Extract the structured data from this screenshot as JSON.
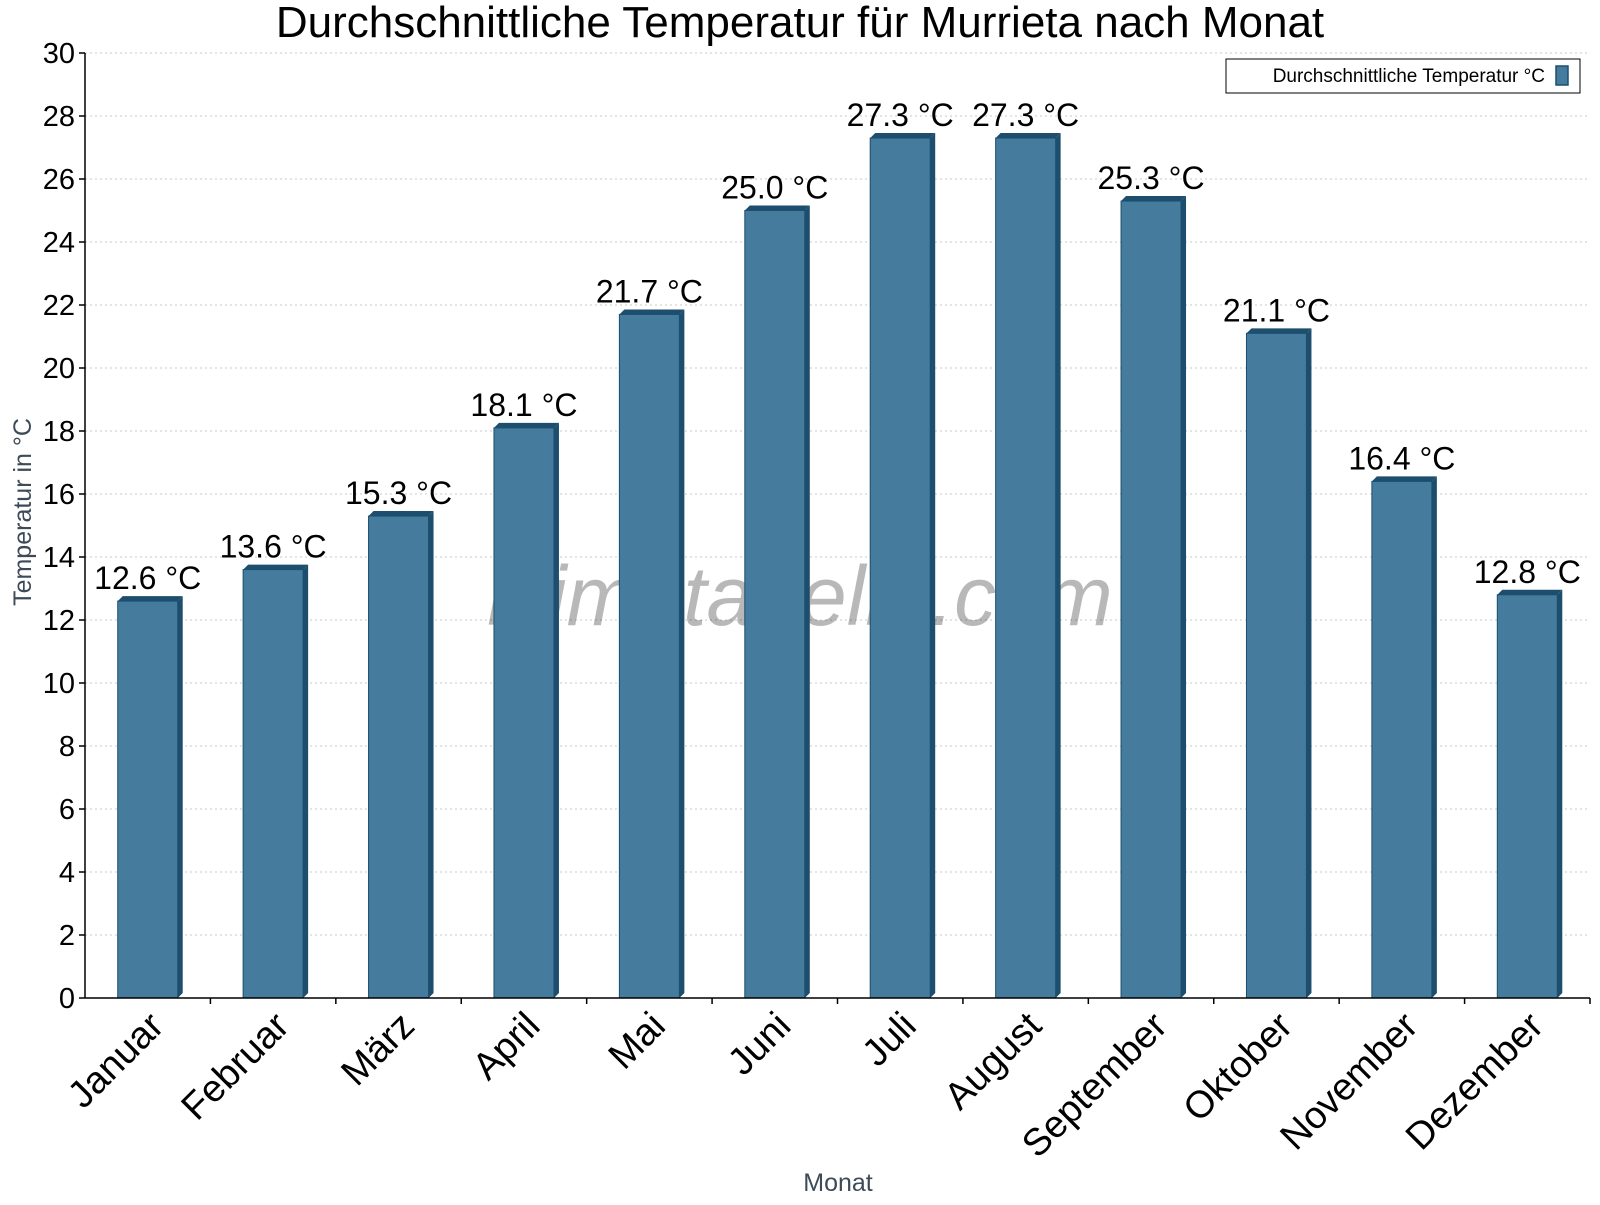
{
  "watermark": "klimatabelle.com",
  "chart_data": {
    "type": "bar",
    "title": "Durchschnittliche Temperatur für Murrieta nach Monat",
    "xlabel": "Monat",
    "ylabel": "Temperatur in °C",
    "categories": [
      "Januar",
      "Februar",
      "März",
      "April",
      "Mai",
      "Juni",
      "Juli",
      "August",
      "September",
      "Oktober",
      "November",
      "Dezember"
    ],
    "series": [
      {
        "name": "Durchschnittliche Temperatur °C",
        "values": [
          12.6,
          13.6,
          15.3,
          18.1,
          21.7,
          25.0,
          27.3,
          27.3,
          25.3,
          21.1,
          16.4,
          12.8
        ],
        "labels": [
          "12.6 °C",
          "13.6 °C",
          "15.3 °C",
          "18.1 °C",
          "21.7 °C",
          "25.0 °C",
          "27.3 °C",
          "27.3 °C",
          "25.3 °C",
          "21.1 °C",
          "16.4 °C",
          "12.8 °C"
        ],
        "color": "#457b9d",
        "edge_color": "#1d4e6e"
      }
    ],
    "ylim": [
      0,
      30
    ],
    "yticks": [
      0,
      2,
      4,
      6,
      8,
      10,
      12,
      14,
      16,
      18,
      20,
      22,
      24,
      26,
      28,
      30
    ],
    "grid": true,
    "legend_position": "top-right"
  }
}
